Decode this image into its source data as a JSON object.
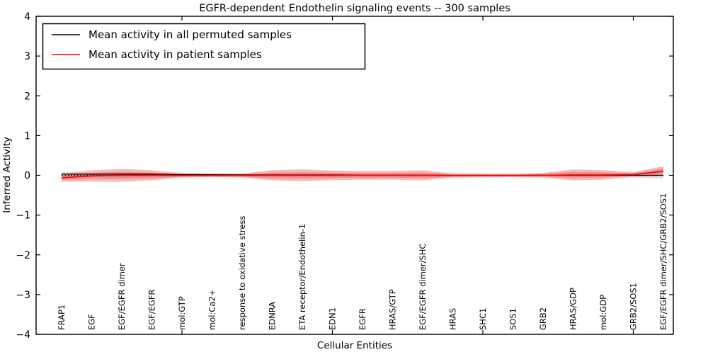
{
  "title": "EGFR-dependent Endothelin signaling events -- 300 samples",
  "xlabel": "Cellular Entities",
  "ylabel": "Inferred Activity",
  "legend": {
    "entries": [
      {
        "label": "Mean activity in all permuted samples",
        "color": "#000000"
      },
      {
        "label": "Mean activity in patient samples",
        "color": "#ff0000"
      }
    ]
  },
  "colors": {
    "patient_line": "#ff0000",
    "permuted_line": "#000000",
    "patient_band_outer": "#f5b9b9",
    "patient_band_inner": "#eb9090",
    "permuted_band": "#e3e3e3",
    "zero_line": "#000000",
    "frame": "#000000"
  },
  "chart_data": {
    "type": "line",
    "title": "EGFR-dependent Endothelin signaling events -- 300 samples",
    "xlabel": "Cellular Entities",
    "ylabel": "Inferred Activity",
    "ylim": [
      -4,
      4
    ],
    "ytick_labels": [
      "4",
      "3",
      "2",
      "1",
      "0",
      "−1",
      "−2",
      "−3",
      "−4"
    ],
    "ytick_values": [
      4,
      3,
      2,
      1,
      0,
      -1,
      -2,
      -3,
      -4
    ],
    "frame_tick_indices": [
      4,
      9,
      14,
      19
    ],
    "grid": false,
    "legend_position": "upper left",
    "categories": [
      "FRAP1",
      "EGF",
      "EGF/EGFR dimer",
      "EGF/EGFR",
      "mol:GTP",
      "mol:Ca2+",
      "response to oxidative stress",
      "EDNRA",
      "ETA receptor/Endothelin-1",
      "EDN1",
      "EGFR",
      "HRAS/GTP",
      "EGF/EGFR dimer/SHC",
      "HRAS",
      "SHC1",
      "SOS1",
      "GRB2",
      "HRAS/GDP",
      "mol:GDP",
      "GRB2/SOS1",
      "EGF/EGFR dimer/SHC/GRB2/SOS1"
    ],
    "series": [
      {
        "name": "Mean activity in all permuted samples",
        "style": "solid",
        "color": "#000000",
        "values": [
          0.03,
          0.03,
          0.03,
          0.03,
          0.02,
          0.015,
          0.01,
          0.01,
          0.01,
          0.01,
          0.005,
          0.005,
          0.005,
          0.0,
          0.0,
          0.0,
          0.0,
          0.0,
          0.0,
          0.0,
          0.0
        ]
      },
      {
        "name": "Mean activity in patient samples",
        "style": "solid",
        "color": "#ff0000",
        "values": [
          -0.06,
          -0.015,
          0.0,
          0.0,
          -0.005,
          -0.005,
          -0.005,
          0.0,
          0.0,
          0.0,
          0.0,
          0.0,
          0.0,
          -0.005,
          -0.005,
          -0.005,
          0.0,
          0.01,
          0.01,
          0.02,
          0.1
        ]
      },
      {
        "name": "zero reference",
        "style": "dotted",
        "color": "#000000",
        "values": [
          0,
          0,
          0,
          0,
          0,
          0,
          0,
          0,
          0,
          0,
          0,
          0,
          0,
          0,
          0,
          0,
          0,
          0,
          0,
          0,
          0
        ]
      }
    ],
    "bands": [
      {
        "name": "permuted std band",
        "center_series": 0,
        "color": "#e3e3e3",
        "half_widths": [
          0.06,
          0.07,
          0.08,
          0.07,
          0.05,
          0.05,
          0.05,
          0.06,
          0.07,
          0.06,
          0.06,
          0.06,
          0.08,
          0.07,
          0.06,
          0.05,
          0.05,
          0.07,
          0.06,
          0.06,
          0.09
        ]
      },
      {
        "name": "patient std band outer",
        "center_series": 1,
        "color": "#f5b9b9",
        "half_widths": [
          0.1,
          0.14,
          0.16,
          0.13,
          0.05,
          0.04,
          0.05,
          0.13,
          0.15,
          0.12,
          0.11,
          0.11,
          0.13,
          0.05,
          0.04,
          0.04,
          0.06,
          0.14,
          0.12,
          0.06,
          0.13
        ]
      },
      {
        "name": "patient std band inner",
        "center_series": 1,
        "color": "#eb9090",
        "half_widths": [
          0.055,
          0.077,
          0.088,
          0.072,
          0.028,
          0.022,
          0.028,
          0.072,
          0.083,
          0.066,
          0.06,
          0.06,
          0.072,
          0.028,
          0.022,
          0.022,
          0.033,
          0.077,
          0.066,
          0.033,
          0.072
        ]
      }
    ]
  }
}
